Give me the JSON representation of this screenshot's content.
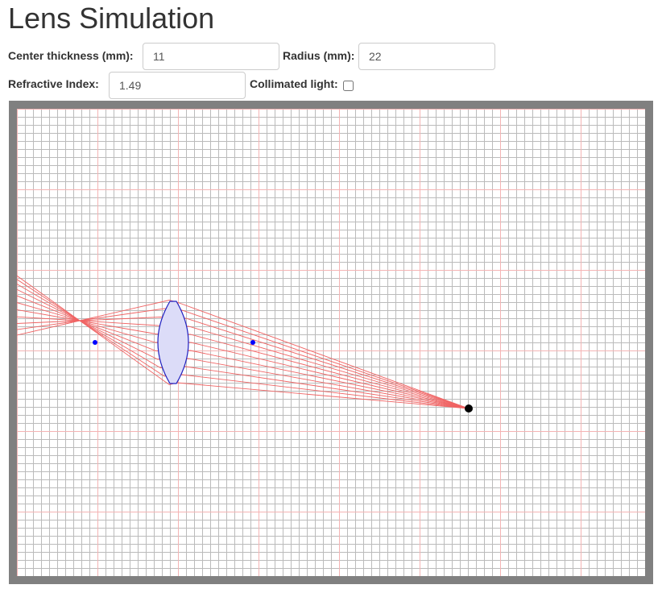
{
  "title": "Lens Simulation",
  "controls": {
    "center_thickness_label": "Center thickness (mm):",
    "center_thickness_value": "11",
    "radius_label": "Radius (mm):",
    "radius_value": "22",
    "refractive_index_label": "Refractive Index:",
    "refractive_index_value": "1.49",
    "collimated_label": "Collimated light:",
    "collimated_checked": false
  },
  "simulation": {
    "grid_minor_color": "#bbbbbb",
    "grid_major_color": "#f4b4b4",
    "ray_color": "#f06464",
    "lens_stroke_color": "#2020c0",
    "lens_fill_color": "#dcdcf8",
    "focal_point_color": "#0000ff",
    "source_color": "#000000",
    "ray_count": 11
  }
}
